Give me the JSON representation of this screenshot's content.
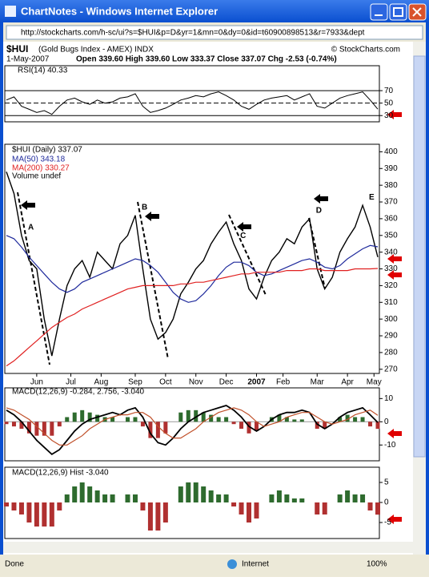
{
  "window": {
    "title": "ChartNotes - Windows Internet Explorer",
    "url": "http://stockcharts.com/h-sc/ui?s=$HUI&p=D&yr=1&mn=0&dy=0&id=t60900898513&r=7933&dept"
  },
  "status_bar": {
    "status": "Done",
    "zone": "Internet",
    "zoom": "100%"
  },
  "header": {
    "symbol": "$HUI",
    "name": "(Gold Bugs Index - AMEX) INDX",
    "copyright": "© StockCharts.com",
    "date": "1-May-2007",
    "quote": "Open 339.60  High 339.60  Low 333.37  Close 337.07  Chg -2.53 (-0.74%)"
  },
  "chart_data": {
    "type": "line",
    "xlim": [
      0,
      49
    ],
    "xticks": [
      {
        "value": 4,
        "label": "Jun"
      },
      {
        "value": 8.5,
        "label": "Jul"
      },
      {
        "value": 12.5,
        "label": "Aug"
      },
      {
        "value": 17,
        "label": "Sep"
      },
      {
        "value": 21,
        "label": "Oct"
      },
      {
        "value": 25,
        "label": "Nov"
      },
      {
        "value": 29,
        "label": "Dec"
      },
      {
        "value": 33,
        "label": "2007"
      },
      {
        "value": 36.5,
        "label": "Feb"
      },
      {
        "value": 41,
        "label": "Mar"
      },
      {
        "value": 45,
        "label": "Apr"
      },
      {
        "value": 48.5,
        "label": "May"
      }
    ],
    "rsi": {
      "name": "RSI(14) 40.33",
      "color": "#000000",
      "ylim": [
        20,
        110
      ],
      "yticks": [
        30,
        50,
        70
      ],
      "values": [
        55,
        60,
        45,
        40,
        35,
        38,
        32,
        45,
        55,
        58,
        52,
        48,
        55,
        50,
        52,
        58,
        60,
        65,
        45,
        35,
        38,
        42,
        48,
        55,
        58,
        62,
        60,
        65,
        68,
        62,
        55,
        45,
        40,
        48,
        55,
        58,
        60,
        62,
        55,
        60,
        65,
        45,
        42,
        50,
        58,
        62,
        65,
        68,
        55,
        40.33
      ]
    },
    "price": {
      "ylim": [
        267.5,
        404.5
      ],
      "yticks": [
        270,
        280,
        290,
        300,
        310,
        320,
        330,
        340,
        350,
        360,
        370,
        380,
        390,
        400
      ],
      "volume_label": "Volume undef",
      "annotations": [
        "A",
        "B",
        "C",
        "D",
        "E"
      ],
      "series": [
        {
          "name": "$HUI (Daily) 337.07",
          "color": "#000000",
          "values": [
            388,
            375,
            350,
            335,
            330,
            300,
            278,
            300,
            320,
            330,
            335,
            325,
            340,
            335,
            330,
            345,
            350,
            362,
            330,
            300,
            288,
            292,
            300,
            315,
            322,
            330,
            335,
            345,
            352,
            358,
            345,
            335,
            318,
            312,
            325,
            335,
            340,
            348,
            345,
            355,
            360,
            330,
            318,
            325,
            340,
            348,
            355,
            368,
            355,
            337.07
          ]
        },
        {
          "name": "MA(50) 343.18",
          "color": "#1f2a9c",
          "values": [
            350,
            348,
            343,
            337,
            332,
            327,
            322,
            318,
            316,
            318,
            322,
            324,
            326,
            328,
            330,
            332,
            334,
            336,
            335,
            332,
            328,
            322,
            316,
            312,
            310,
            311,
            315,
            320,
            326,
            331,
            334,
            334,
            332,
            328,
            326,
            327,
            329,
            331,
            333,
            335,
            336,
            334,
            331,
            330,
            332,
            336,
            339,
            342,
            344,
            343.18
          ]
        },
        {
          "name": "MA(200) 330.27",
          "color": "#e02020",
          "values": [
            272,
            275,
            279,
            283,
            287,
            291,
            295,
            298,
            301,
            303,
            306,
            308,
            310,
            312,
            314,
            316,
            318,
            319,
            320,
            320,
            320,
            320,
            320,
            321,
            321,
            322,
            322,
            323,
            324,
            325,
            326,
            327,
            327,
            328,
            328,
            328,
            328,
            329,
            329,
            329,
            330,
            330,
            329,
            329,
            329,
            329,
            330,
            330,
            330,
            330.27
          ]
        }
      ]
    },
    "macd": {
      "name": "MACD(12,26,9) -0.284, 2.756, -3.040",
      "ylim": [
        -16.8,
        14.6
      ],
      "yticks": [
        10,
        0,
        -10
      ],
      "series": [
        {
          "name": "MACD",
          "color": "#000000",
          "values": [
            5,
            3,
            0,
            -4,
            -8,
            -11,
            -14,
            -12,
            -8,
            -4,
            -1,
            1,
            2,
            3,
            4,
            3,
            5,
            6,
            2,
            -5,
            -9,
            -10,
            -7,
            -3,
            0,
            2,
            4,
            5,
            6,
            7,
            5,
            2,
            -2,
            -4,
            -2,
            1,
            3,
            4,
            4,
            5,
            4,
            -1,
            -3,
            -1,
            2,
            4,
            5,
            6,
            3,
            -0.284
          ]
        },
        {
          "name": "Signal",
          "color": "#c0502a",
          "values": [
            6,
            5,
            3,
            1,
            -2,
            -5,
            -8,
            -10,
            -10,
            -8,
            -6,
            -3,
            -1,
            1,
            2,
            3,
            3,
            4,
            4,
            2,
            -2,
            -5,
            -7,
            -7,
            -5,
            -3,
            0,
            2,
            4,
            5,
            6,
            5,
            3,
            0,
            -2,
            -1,
            0,
            2,
            3,
            4,
            4,
            2,
            0,
            -1,
            0,
            1,
            3,
            4,
            5,
            2.756
          ]
        }
      ]
    },
    "hist": {
      "name": "MACD(12,26,9) Hist -3.040",
      "ylim": [
        -9,
        8.8
      ],
      "yticks": [
        5,
        0,
        -5
      ],
      "up_color": "#2e6b2e",
      "down_color": "#b03030",
      "values": [
        -1,
        -2,
        -3,
        -5,
        -6,
        -6,
        -6,
        -2,
        2,
        4,
        5,
        4,
        3,
        2,
        2,
        0,
        2,
        2,
        -2,
        -7,
        -7,
        -5,
        0,
        4,
        5,
        5,
        4,
        3,
        2,
        2,
        -1,
        -3,
        -5,
        -4,
        0,
        2,
        3,
        2,
        1,
        1,
        0,
        -3,
        -3,
        0,
        2,
        3,
        2,
        2,
        -2,
        -3.04
      ]
    }
  }
}
